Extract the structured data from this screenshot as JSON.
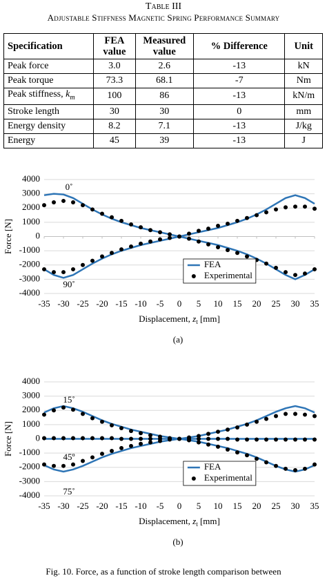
{
  "table": {
    "caption": "Table III",
    "title": "Adjustable Stiffness Magnetic Spring Performance Summary",
    "header": [
      "Specification",
      "FEA value",
      "Measured value",
      "% Difference",
      "Unit"
    ],
    "rows": [
      [
        "Peak force",
        "3.0",
        "2.6",
        "-13",
        "kN"
      ],
      [
        "Peak torque",
        "73.3",
        "68.1",
        "-7",
        "Nm"
      ],
      [
        {
          "text": "Peak stiffness, ",
          "symbol": "k",
          "subscript": "m"
        },
        "100",
        "86",
        "-13",
        "kN/m"
      ],
      [
        "Stroke length",
        "30",
        "30",
        "0",
        "mm"
      ],
      [
        "Energy density",
        "8.2",
        "7.1",
        "-13",
        "J/kg"
      ],
      [
        "Energy",
        "45",
        "39",
        "-13",
        "J"
      ]
    ]
  },
  "chart_data": [
    {
      "type": "line",
      "panel_label": "(a)",
      "y_label": "Force [N]",
      "x_label": {
        "text": "Displacement, ",
        "symbol": "z",
        "subscript": "t",
        "unit": " [mm]"
      },
      "x": [
        -35,
        -32.5,
        -30,
        -27.5,
        -25,
        -22.5,
        -20,
        -17.5,
        -15,
        -12.5,
        -10,
        -7.5,
        -5,
        -2.5,
        0,
        2.5,
        5,
        7.5,
        10,
        12.5,
        15,
        17.5,
        20,
        22.5,
        25,
        27.5,
        30,
        32.5,
        35
      ],
      "xlim": [
        -35,
        35
      ],
      "xticks": [
        -35,
        -30,
        -25,
        -20,
        -15,
        -10,
        -5,
        0,
        5,
        10,
        15,
        20,
        25,
        30,
        35
      ],
      "ylim": [
        -4000,
        4000
      ],
      "yticks": [
        -4000,
        -3000,
        -2000,
        -1000,
        0,
        1000,
        2000,
        3000,
        4000
      ],
      "grid": true,
      "legend": "lower center",
      "annotations": [
        "0˚",
        "90˚"
      ],
      "series": [
        {
          "name": "FEA",
          "color": "#2e75b6",
          "style": "line",
          "curves": [
            [
              2900,
              3000,
              2950,
              2700,
              2300,
              1900,
              1550,
              1250,
              1000,
              800,
              600,
              450,
              300,
              150,
              0,
              -150,
              -300,
              -450,
              -600,
              -800,
              -1000,
              -1250,
              -1550,
              -1900,
              -2300,
              -2700,
              -3000,
              -2700,
              -2300
            ],
            [
              -2300,
              -2700,
              -2900,
              -2700,
              -2300,
              -1900,
              -1550,
              -1250,
              -1000,
              -800,
              -600,
              -450,
              -300,
              -150,
              0,
              150,
              300,
              450,
              600,
              800,
              1000,
              1250,
              1550,
              1900,
              2300,
              2700,
              2900,
              2700,
              2300
            ]
          ]
        },
        {
          "name": "Experimental",
          "color": "#000000",
          "style": "dot",
          "curves": [
            [
              2200,
              2400,
              2500,
              2400,
              2200,
              1900,
              1600,
              1350,
              1100,
              850,
              650,
              450,
              300,
              150,
              0,
              -150,
              -350,
              -550,
              -750,
              -950,
              -1150,
              -1400,
              -1650,
              -1900,
              -2200,
              -2500,
              -2700,
              -2600,
              -2300
            ],
            [
              -2300,
              -2500,
              -2500,
              -2300,
              -2000,
              -1700,
              -1400,
              -1150,
              -900,
              -700,
              -500,
              -350,
              -200,
              -100,
              0,
              200,
              400,
              550,
              750,
              900,
              1100,
              1300,
              1500,
              1700,
              1900,
              2050,
              2100,
              2100,
              1950
            ]
          ]
        }
      ]
    },
    {
      "type": "line",
      "panel_label": "(b)",
      "y_label": "Force [N]",
      "x_label": {
        "text": "Displacement, ",
        "symbol": "z",
        "subscript": "t",
        "unit": " [mm]"
      },
      "x": [
        -35,
        -32.5,
        -30,
        -27.5,
        -25,
        -22.5,
        -20,
        -17.5,
        -15,
        -12.5,
        -10,
        -7.5,
        -5,
        -2.5,
        0,
        2.5,
        5,
        7.5,
        10,
        12.5,
        15,
        17.5,
        20,
        22.5,
        25,
        27.5,
        30,
        32.5,
        35
      ],
      "xlim": [
        -35,
        35
      ],
      "xticks": [
        -35,
        -30,
        -25,
        -20,
        -15,
        -10,
        -5,
        0,
        5,
        10,
        15,
        20,
        25,
        30,
        35
      ],
      "ylim": [
        -4000,
        4000
      ],
      "yticks": [
        -4000,
        -3000,
        -2000,
        -1000,
        0,
        1000,
        2000,
        3000,
        4000
      ],
      "grid": true,
      "legend": "lower center",
      "annotations": [
        "15˚",
        "45º",
        "75˚"
      ],
      "series": [
        {
          "name": "FEA",
          "color": "#2e75b6",
          "style": "line",
          "curves": [
            [
              1850,
              2150,
              2300,
              2150,
              1900,
              1600,
              1300,
              1050,
              850,
              650,
              500,
              350,
              200,
              100,
              0,
              -100,
              -200,
              -350,
              -500,
              -650,
              -850,
              -1050,
              -1300,
              -1600,
              -1900,
              -2150,
              -2300,
              -2150,
              -1850
            ],
            [
              0,
              0,
              0,
              0,
              0,
              0,
              0,
              0,
              0,
              0,
              0,
              0,
              0,
              0,
              0,
              0,
              0,
              0,
              0,
              0,
              0,
              0,
              0,
              0,
              0,
              0,
              0,
              0,
              0
            ],
            [
              -1850,
              -2150,
              -2300,
              -2150,
              -1900,
              -1600,
              -1300,
              -1050,
              -850,
              -650,
              -500,
              -350,
              -200,
              -100,
              0,
              100,
              200,
              350,
              500,
              650,
              850,
              1050,
              1300,
              1600,
              1900,
              2150,
              2300,
              2150,
              1850
            ]
          ]
        },
        {
          "name": "Experimental",
          "color": "#000000",
          "style": "dot",
          "curves": [
            [
              1700,
              2000,
              2200,
              2050,
              1750,
              1450,
              1200,
              950,
              750,
              550,
              400,
              250,
              150,
              50,
              0,
              -100,
              -250,
              -400,
              -550,
              -750,
              -950,
              -1150,
              -1400,
              -1650,
              -1900,
              -2100,
              -2200,
              -2100,
              -1800
            ],
            [
              50,
              50,
              50,
              50,
              50,
              50,
              50,
              50,
              0,
              0,
              0,
              0,
              0,
              0,
              0,
              0,
              0,
              0,
              0,
              0,
              -50,
              -50,
              -50,
              -50,
              -50,
              -50,
              -50,
              -50,
              -50
            ],
            [
              -1800,
              -1900,
              -1900,
              -1800,
              -1550,
              -1300,
              -1050,
              -850,
              -650,
              -500,
              -350,
              -250,
              -150,
              -50,
              0,
              100,
              200,
              350,
              500,
              650,
              800,
              1000,
              1200,
              1400,
              1600,
              1750,
              1750,
              1700,
              1600
            ]
          ]
        }
      ]
    }
  ],
  "figure_caption": "Fig. 10. Force, as a function of stroke length comparison between"
}
